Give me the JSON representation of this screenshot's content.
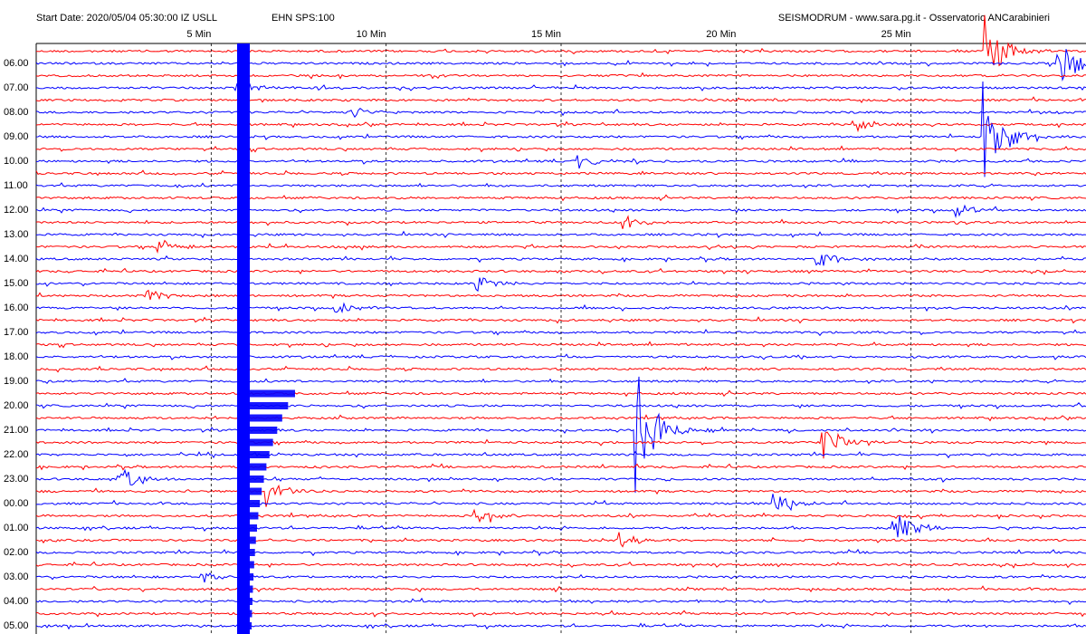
{
  "chart_data": {
    "type": "helicorder",
    "title": "SEISMODRUM - www.sara.pg.it - Osservatorio ANCarabinieri",
    "start_date": "Start Date: 2020/05/04 05:30:00 IZ USLL",
    "channel": "EHN  SPS:100",
    "xlim": [
      0,
      30
    ],
    "xticks": [
      {
        "value": 5,
        "label": "5 Min"
      },
      {
        "value": 10,
        "label": "10 Min"
      },
      {
        "value": 15,
        "label": "15 Min"
      },
      {
        "value": 20,
        "label": "20 Min"
      },
      {
        "value": 25,
        "label": "25 Min"
      }
    ],
    "rows": [
      "06.00",
      "07.00",
      "08.00",
      "09.00",
      "10.00",
      "11.00",
      "12.00",
      "13.00",
      "14.00",
      "15.00",
      "16.00",
      "17.00",
      "18.00",
      "19.00",
      "20.00",
      "21.00",
      "22.00",
      "23.00",
      "00.00",
      "01.00",
      "02.00",
      "03.00",
      "04.00",
      "05.00"
    ],
    "colors": [
      "#ff0000",
      "#0000ff"
    ],
    "grid": true
  }
}
